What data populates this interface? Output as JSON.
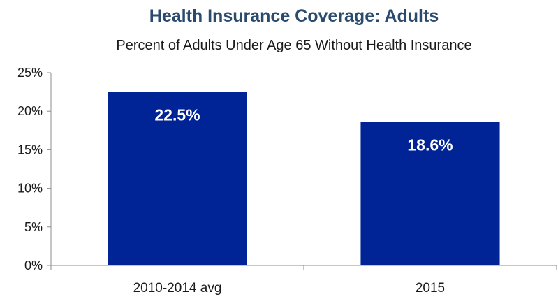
{
  "chart_data": {
    "type": "bar",
    "title": "Health Insurance Coverage: Adults",
    "subtitle": "Percent of Adults Under Age 65 Without Health Insurance",
    "xlabel": "",
    "ylabel": "",
    "categories": [
      "2010-2014 avg",
      "2015"
    ],
    "values": [
      22.5,
      18.6
    ],
    "data_labels": [
      "22.5%",
      "18.6%"
    ],
    "ylim": [
      0,
      25
    ],
    "yticks": [
      0,
      5,
      10,
      15,
      20,
      25
    ],
    "ytick_labels": [
      "0%",
      "5%",
      "10%",
      "15%",
      "20%",
      "25%"
    ],
    "grid": false,
    "legend": "none",
    "colors": {
      "bar": "#002395",
      "title": "#2a4a6e",
      "text": "#1a1a1a",
      "axis": "#8c8c8c",
      "label": "#ffffff"
    }
  }
}
